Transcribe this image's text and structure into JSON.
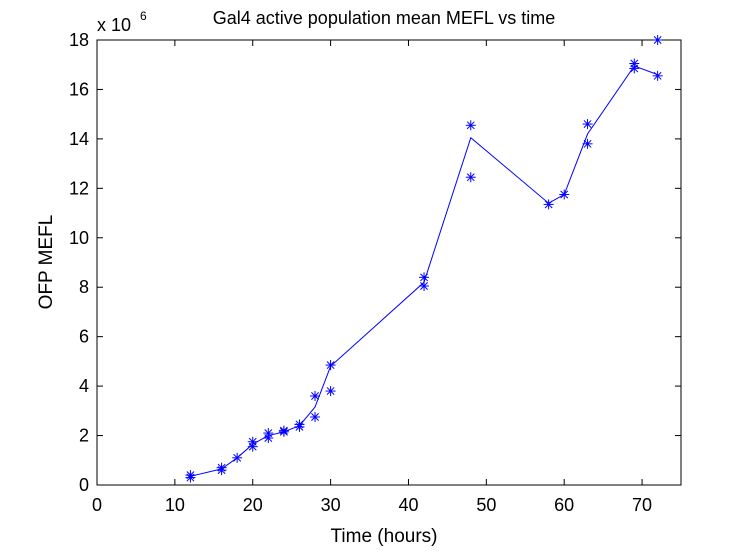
{
  "chart_data": {
    "type": "line",
    "title": "Gal4 active population mean MEFL vs time",
    "xlabel": "Time (hours)",
    "ylabel": "OFP MEFL",
    "xlim": [
      0,
      75
    ],
    "ylim": [
      0,
      18000000
    ],
    "y_scale_factor_text": "x 10",
    "y_scale_factor_exponent": "6",
    "x_ticks": [
      0,
      10,
      20,
      30,
      40,
      50,
      60,
      70
    ],
    "x_tick_labels": [
      "0",
      "10",
      "20",
      "30",
      "40",
      "50",
      "60",
      "70"
    ],
    "y_ticks": [
      0,
      2000000,
      4000000,
      6000000,
      8000000,
      10000000,
      12000000,
      14000000,
      16000000,
      18000000
    ],
    "y_tick_labels": [
      "0",
      "2",
      "4",
      "6",
      "8",
      "10",
      "12",
      "14",
      "16",
      "18"
    ],
    "grid": false,
    "line_color": "#0000ff",
    "marker": "asterisk",
    "series": [
      {
        "line_points": [
          [
            12,
            350000
          ],
          [
            16,
            650000
          ],
          [
            18,
            1100000
          ],
          [
            20,
            1650000
          ],
          [
            22,
            2000000
          ],
          [
            24,
            2150000
          ],
          [
            26,
            2400000
          ],
          [
            28,
            3150000
          ],
          [
            30,
            4800000
          ],
          [
            42,
            8200000
          ],
          [
            48,
            14050000
          ],
          [
            58,
            11400000
          ],
          [
            60,
            11750000
          ],
          [
            63,
            14200000
          ],
          [
            69,
            16950000
          ],
          [
            72,
            16600000
          ]
        ],
        "scatter_points": [
          [
            12,
            300000
          ],
          [
            12,
            400000
          ],
          [
            16,
            600000
          ],
          [
            16,
            700000
          ],
          [
            18,
            1100000
          ],
          [
            20,
            1550000
          ],
          [
            20,
            1750000
          ],
          [
            22,
            1900000
          ],
          [
            22,
            2100000
          ],
          [
            24,
            2150000
          ],
          [
            24,
            2200000
          ],
          [
            26,
            2350000
          ],
          [
            26,
            2450000
          ],
          [
            28,
            2750000
          ],
          [
            28,
            3600000
          ],
          [
            30,
            3800000
          ],
          [
            30,
            4850000
          ],
          [
            42,
            8050000
          ],
          [
            42,
            8400000
          ],
          [
            48,
            12450000
          ],
          [
            48,
            14550000
          ],
          [
            58,
            11350000
          ],
          [
            60,
            11750000
          ],
          [
            63,
            13800000
          ],
          [
            63,
            14600000
          ],
          [
            69,
            16850000
          ],
          [
            69,
            17050000
          ],
          [
            72,
            16550000
          ],
          [
            72,
            18000000
          ]
        ]
      }
    ]
  }
}
